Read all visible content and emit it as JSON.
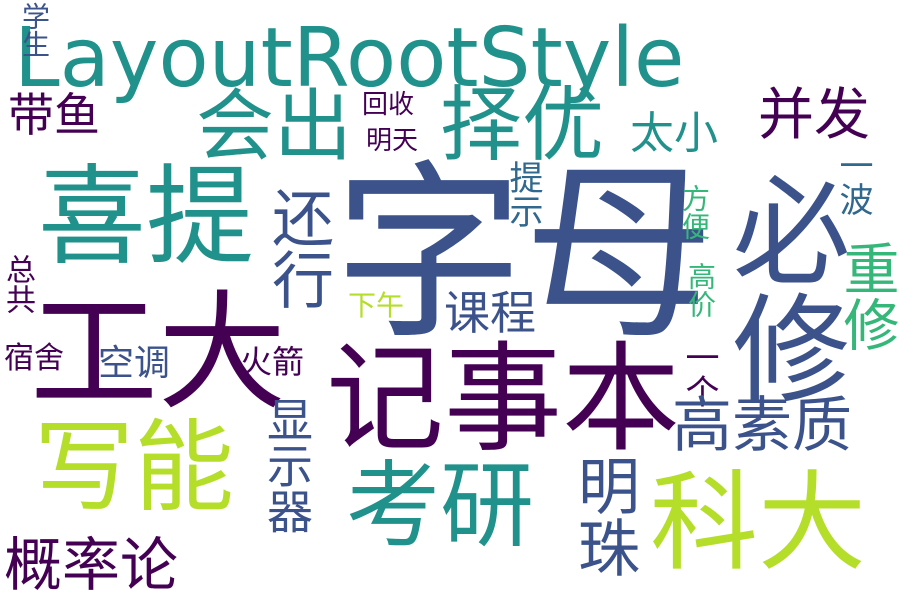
{
  "palette": {
    "dark_purple": "#440154",
    "indigo": "#3b528b",
    "blue": "#31688e",
    "teal": "#21918c",
    "green": "#35b779",
    "light_green": "#6ece58",
    "yellow_green": "#b5de2b"
  },
  "words": {
    "w01": "LayoutRootStyle",
    "w02": "学生",
    "w03": "字母",
    "w04": "喜提",
    "w05": "择优",
    "w06": "会出",
    "w07": "必修",
    "w08": "工大",
    "w09": "记事本",
    "w10": "写能",
    "w11": "考研",
    "w12": "科大",
    "w13": "带鱼",
    "w14": "还行",
    "w15": "太小",
    "w16": "并发",
    "w17": "回收",
    "w18": "明天",
    "w19": "提示",
    "w20": "方便",
    "w21": "一波",
    "w22": "高价",
    "w23": "重修",
    "w24": "课程",
    "w25": "下午",
    "w26": "总共",
    "w27": "宿舍",
    "w28": "空调",
    "w29": "火箭",
    "w30": "一个",
    "w31": "高素质",
    "w32": "显示器",
    "w33": "明珠",
    "w34": "概率论"
  }
}
